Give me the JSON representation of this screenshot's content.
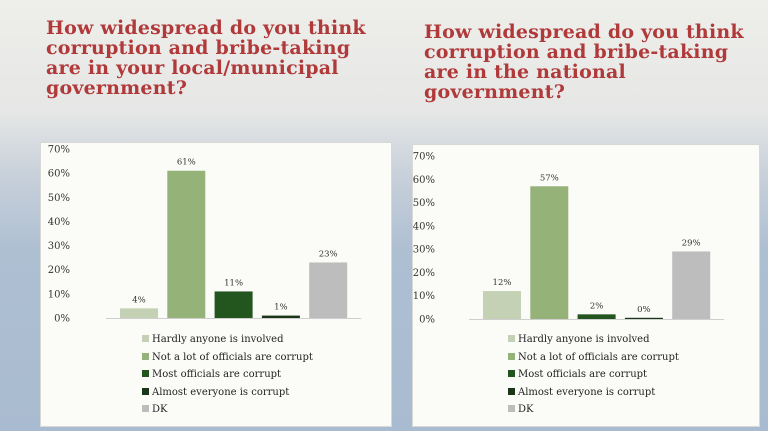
{
  "titles": {
    "left": "How widespread do you think corruption and bribe-taking are in your local/municipal government?",
    "right": "How widespread do you think corruption and bribe-taking are in the national government?"
  },
  "chart_data": [
    {
      "type": "bar",
      "title": "How widespread do you think corruption and bribe-taking are in your local/municipal government?",
      "categories": [
        "Hardly anyone is involved",
        "Not a lot of officials are corrupt",
        "Most officials are corrupt",
        "Almost everyone is corrupt",
        "DK"
      ],
      "values": [
        4,
        61,
        11,
        1,
        23
      ],
      "value_labels": [
        "4%",
        "61%",
        "11%",
        "1%",
        "23%"
      ],
      "colors": [
        "#c4d1b4",
        "#95b379",
        "#23551e",
        "#1b3518",
        "#bdbdbd"
      ],
      "yticks": [
        "0%",
        "10%",
        "20%",
        "30%",
        "40%",
        "50%",
        "60%",
        "70%"
      ],
      "ylim": [
        0,
        70
      ],
      "grid": false,
      "legend_position": "bottom"
    },
    {
      "type": "bar",
      "title": "How widespread do you think corruption and bribe-taking are in the national government?",
      "categories": [
        "Hardly anyone is involved",
        "Not a lot of officials are corrupt",
        "Most officials are corrupt",
        "Almost everyone is corrupt",
        "DK"
      ],
      "values": [
        12,
        57,
        2,
        0,
        29
      ],
      "value_labels": [
        "12%",
        "57%",
        "2%",
        "0%",
        "29%"
      ],
      "colors": [
        "#c4d1b4",
        "#95b379",
        "#23551e",
        "#1b3518",
        "#bdbdbd"
      ],
      "yticks": [
        "0%",
        "10%",
        "20%",
        "30%",
        "40%",
        "50%",
        "60%",
        "70%"
      ],
      "ylim": [
        0,
        70
      ],
      "grid": false,
      "legend_position": "bottom"
    }
  ]
}
